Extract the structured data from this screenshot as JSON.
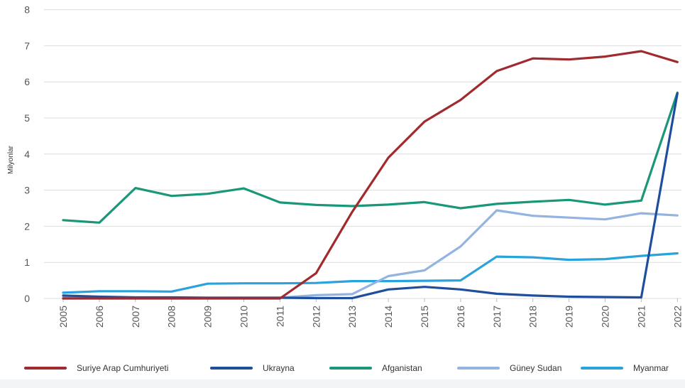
{
  "chart_data": {
    "type": "line",
    "ylabel": "Milyonlar",
    "ylim": [
      0,
      8
    ],
    "yticks": [
      0,
      1,
      2,
      3,
      4,
      5,
      6,
      7,
      8
    ],
    "grid": true,
    "legend_position": "bottom",
    "x": [
      "2005",
      "2006",
      "2007",
      "2008",
      "2009",
      "2010",
      "2011",
      "2012",
      "2013",
      "2014",
      "2015",
      "2016",
      "2017",
      "2018",
      "2019",
      "2020",
      "2021",
      "2022"
    ],
    "series": [
      {
        "name": "Suriye Arap Cumhuriyeti",
        "color": "#a12a2e",
        "values": [
          0,
          0,
          0,
          0,
          0,
          0,
          0,
          0.7,
          2.4,
          3.9,
          4.9,
          5.5,
          6.3,
          6.65,
          6.62,
          6.7,
          6.85,
          6.55
        ]
      },
      {
        "name": "Ukrayna",
        "color": "#1f4e9c",
        "values": [
          0.08,
          0.05,
          0.03,
          0.03,
          0.02,
          0.02,
          0.02,
          0.01,
          0.01,
          0.25,
          0.32,
          0.25,
          0.13,
          0.08,
          0.05,
          0.04,
          0.03,
          5.68
        ]
      },
      {
        "name": "Afganistan",
        "color": "#1a9778",
        "values": [
          2.17,
          2.1,
          3.06,
          2.84,
          2.9,
          3.05,
          2.66,
          2.59,
          2.56,
          2.6,
          2.67,
          2.5,
          2.62,
          2.68,
          2.73,
          2.6,
          2.71,
          5.7
        ]
      },
      {
        "name": "Güney Sudan",
        "color": "#93b3e0",
        "values": [
          0.02,
          0.02,
          0.02,
          0.02,
          0.02,
          0.02,
          0.02,
          0.09,
          0.12,
          0.62,
          0.78,
          1.44,
          2.44,
          2.29,
          2.24,
          2.19,
          2.36,
          2.3
        ]
      },
      {
        "name": "Myanmar",
        "color": "#2aa3dc",
        "values": [
          0.16,
          0.2,
          0.2,
          0.19,
          0.41,
          0.42,
          0.42,
          0.43,
          0.48,
          0.48,
          0.49,
          0.5,
          1.16,
          1.14,
          1.07,
          1.09,
          1.18,
          1.25
        ]
      }
    ]
  }
}
